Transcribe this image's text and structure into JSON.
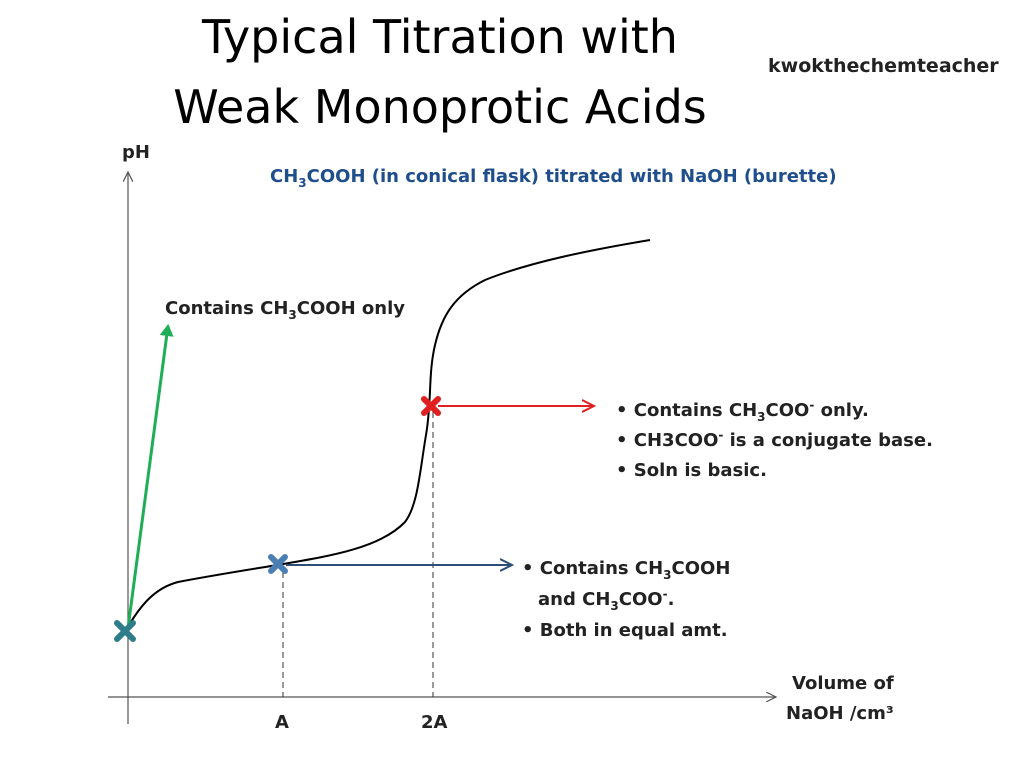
{
  "header": {
    "title_line1": "Typical Titration with",
    "title_line2": "Weak Monoprotic Acids",
    "author": "kwokthechemteacher"
  },
  "chart_data": {
    "type": "line",
    "subtitle": "CH₃COOH (in conical flask) titrated with NaOH (burette)",
    "ylabel": "pH",
    "xlabel_line1": "Volume of",
    "xlabel_line2": "NaOH /cm³",
    "x_ticks": [
      "A",
      "2A"
    ],
    "points_of_interest": [
      {
        "name": "start",
        "color": "#2e7d8a",
        "label": "Contains CH₃COOH only",
        "arrow_color": "#1fae55"
      },
      {
        "name": "half-equivalence",
        "x_tick": "A",
        "color": "#4a7fb5",
        "arrow_color": "#2e4d7a",
        "bullets": [
          "Contains CH₃COOH",
          "and CH₃COO⁻.",
          "Both in equal amt."
        ]
      },
      {
        "name": "equivalence",
        "x_tick": "2A",
        "color": "#e02020",
        "arrow_color": "#e02020",
        "bullets": [
          "Contains CH₃COO⁻ only.",
          "CH3COO⁻ is a conjugate base.",
          "Soln is basic."
        ]
      }
    ],
    "curve_color": "#000000"
  }
}
